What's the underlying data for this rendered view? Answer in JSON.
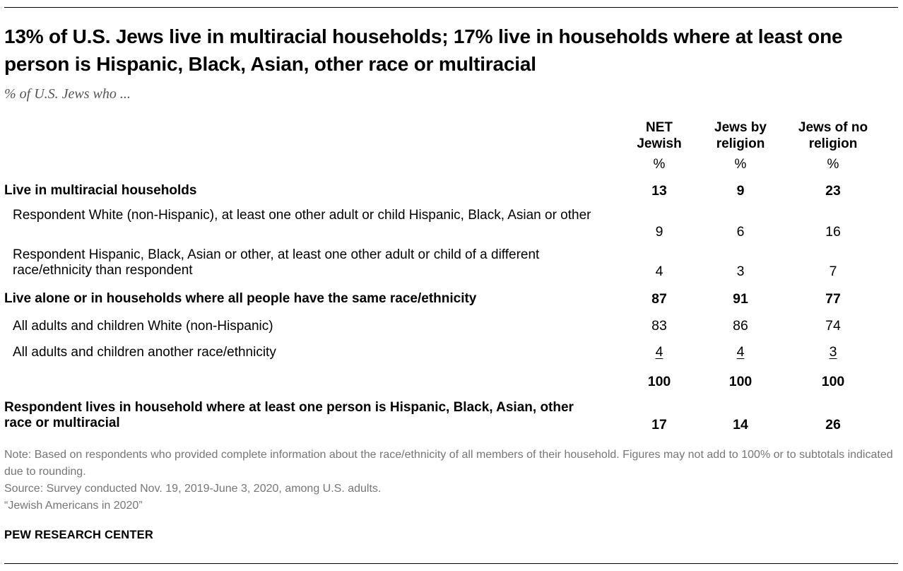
{
  "title": "13% of U.S. Jews live in multiracial households; 17% live in households where at least one person is Hispanic, Black, Asian, other race or multiracial",
  "subtitle": "% of U.S. Jews who ...",
  "columns": [
    {
      "line1": "NET",
      "line2": "Jewish",
      "unit": "%"
    },
    {
      "line1": "Jews by",
      "line2": "religion",
      "unit": "%"
    },
    {
      "line1": "Jews of no",
      "line2": "religion",
      "unit": "%"
    }
  ],
  "rows": [
    {
      "label": "Live in multiracial households",
      "values": [
        "13",
        "9",
        "23"
      ]
    },
    {
      "label": "Respondent White (non-Hispanic), at least one other adult or child Hispanic, Black, Asian or other",
      "values": [
        "9",
        "6",
        "16"
      ]
    },
    {
      "label": "Respondent Hispanic, Black, Asian or other, at least one other adult or child of a different race/ethnicity than respondent",
      "values": [
        "4",
        "3",
        "7"
      ]
    },
    {
      "label": "Live alone or in households where all people have the same race/ethnicity",
      "values": [
        "87",
        "91",
        "77"
      ]
    },
    {
      "label": "All adults and children White (non-Hispanic)",
      "values": [
        "83",
        "86",
        "74"
      ]
    },
    {
      "label": "All adults and children another race/ethnicity",
      "values": [
        "4",
        "4",
        "3"
      ]
    },
    {
      "label": "",
      "values": [
        "100",
        "100",
        "100"
      ]
    },
    {
      "label": "Respondent lives in household where at least one person is Hispanic, Black, Asian, other race or multiracial",
      "values": [
        "17",
        "14",
        "26"
      ]
    }
  ],
  "chart_data": {
    "type": "table",
    "title": "13% of U.S. Jews live in multiracial households; 17% live in households where at least one person is Hispanic, Black, Asian, other race or multiracial",
    "subtitle": "% of U.S. Jews who ...",
    "columns": [
      "NET Jewish",
      "Jews by religion",
      "Jews of no religion"
    ],
    "rows": [
      {
        "label": "Live in multiracial households",
        "values": [
          13,
          9,
          23
        ]
      },
      {
        "label": "Respondent White (non-Hispanic), at least one other adult or child Hispanic, Black, Asian or other",
        "values": [
          9,
          6,
          16
        ]
      },
      {
        "label": "Respondent Hispanic, Black, Asian or other, at least one other adult or child of a different race/ethnicity than respondent",
        "values": [
          4,
          3,
          7
        ]
      },
      {
        "label": "Live alone or in households where all people have the same race/ethnicity",
        "values": [
          87,
          91,
          77
        ]
      },
      {
        "label": "All adults and children White (non-Hispanic)",
        "values": [
          83,
          86,
          74
        ]
      },
      {
        "label": "All adults and children another race/ethnicity",
        "values": [
          4,
          4,
          3
        ]
      },
      {
        "label": "",
        "values": [
          100,
          100,
          100
        ]
      },
      {
        "label": "Respondent lives in household where at least one person is Hispanic, Black, Asian, other race or multiracial",
        "values": [
          17,
          14,
          26
        ]
      }
    ]
  },
  "notes": {
    "note": "Note: Based on respondents who provided complete information about the race/ethnicity of all members of their household. Figures may not add to 100% or to subtotals indicated due to rounding.",
    "source": "Source: Survey conducted Nov. 19, 2019-June 3, 2020, among U.S. adults.",
    "report": "“Jewish Americans in 2020”"
  },
  "brand": "PEW RESEARCH CENTER",
  "colors": {
    "text": "#000000",
    "note": "#767676",
    "subtitle": "#555555"
  }
}
